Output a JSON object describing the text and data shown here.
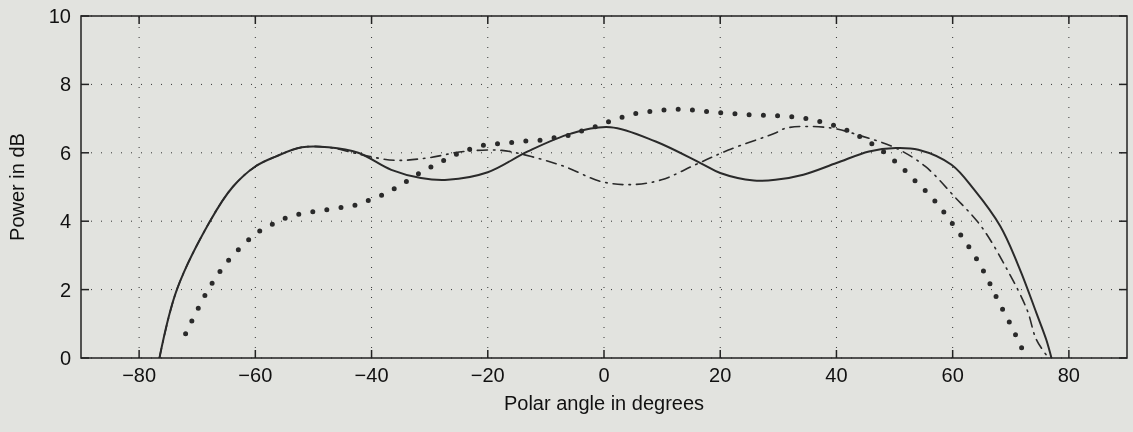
{
  "chart_data": {
    "type": "line",
    "xlabel": "Polar angle in degrees",
    "ylabel": "Power in dB",
    "xlim": [
      -90,
      90
    ],
    "ylim": [
      0,
      10
    ],
    "xticks": [
      -80,
      -60,
      -40,
      -20,
      0,
      20,
      40,
      60,
      80
    ],
    "yticks": [
      0,
      2,
      4,
      6,
      8,
      10
    ],
    "grid": true,
    "series": [
      {
        "color": "#2a2a2a",
        "line_style": "solid",
        "x": [
          -76.5,
          -73.5,
          -67.8,
          -63.9,
          -60,
          -56.5,
          -52,
          -47.4,
          -42.3,
          -36.6,
          -31.5,
          -26.9,
          -20,
          -13.1,
          -5.7,
          1.1,
          8.9,
          16.6,
          20,
          25.8,
          29.5,
          34.3,
          40,
          45.6,
          50.2,
          54.1,
          59.8,
          63.7,
          68.2,
          71.6,
          74.4,
          76.1,
          77
        ],
        "values": [
          0,
          2,
          4,
          5,
          5.6,
          5.89,
          6.16,
          6.16,
          6.0,
          5.5,
          5.26,
          5.21,
          5.43,
          6.04,
          6.56,
          6.75,
          6.33,
          5.7,
          5.41,
          5.19,
          5.21,
          5.36,
          5.7,
          6.04,
          6.14,
          6.09,
          5.65,
          4.92,
          3.85,
          2.58,
          1.32,
          0.54,
          0
        ]
      },
      {
        "color": "#2a2a2a",
        "line_style": "dashdot",
        "x": [
          -76.5,
          -73.5,
          -67.8,
          -63.9,
          -60,
          -56.5,
          -52,
          -47.4,
          -41.6,
          -36,
          -30.4,
          -24.1,
          -17.6,
          -12.5,
          -6.8,
          -0.5,
          4.7,
          9.9,
          15.7,
          21.4,
          29.5,
          31.5,
          38.9,
          44.5,
          50.2,
          55.3,
          60.3,
          64.9,
          69.4,
          72.8,
          74.4,
          76.5
        ],
        "values": [
          0,
          2,
          4,
          5,
          5.6,
          5.89,
          6.16,
          6.16,
          5.94,
          5.78,
          5.85,
          6.04,
          6.07,
          5.89,
          5.6,
          5.16,
          5.07,
          5.21,
          5.65,
          6.08,
          6.58,
          6.73,
          6.73,
          6.48,
          6.14,
          5.6,
          4.72,
          3.85,
          2.58,
          1.41,
          0.54,
          0
        ]
      },
      {
        "color": "#2a2a2a",
        "line_style": "dotted",
        "x": [
          -72,
          -69.9,
          -67.9,
          -66,
          -64,
          -61.8,
          -59.9,
          -57.8,
          -55.8,
          -53.8,
          -51.9,
          -49.9,
          -48,
          -45.8,
          -43.9,
          -42,
          -40.2,
          -38.1,
          -36.1,
          -34.3,
          -32.3,
          -30.3,
          -28.1,
          -26.1,
          -24.2,
          -22.2,
          -20,
          -18,
          -16,
          -14,
          -12,
          -10,
          -7.9,
          -5.9,
          -4,
          -2,
          0,
          2,
          4,
          6,
          8,
          10,
          12,
          14,
          16.1,
          18,
          20,
          22.1,
          24.1,
          26.2,
          28.3,
          30.2,
          32.1,
          34.1,
          36,
          38.1,
          40.1,
          42.1,
          44.1,
          46.2,
          48.1,
          50.1,
          52,
          53.9,
          56,
          58,
          59.9,
          62,
          64,
          65.9,
          67.8,
          70,
          72
        ],
        "values": [
          0.71,
          1.43,
          2.06,
          2.55,
          2.98,
          3.35,
          3.64,
          3.84,
          4.02,
          4.15,
          4.22,
          4.28,
          4.33,
          4.39,
          4.42,
          4.51,
          4.63,
          4.77,
          4.95,
          5.13,
          5.35,
          5.54,
          5.73,
          5.91,
          6.03,
          6.16,
          6.24,
          6.27,
          6.3,
          6.34,
          6.35,
          6.39,
          6.46,
          6.52,
          6.63,
          6.73,
          6.86,
          6.98,
          7.08,
          7.17,
          7.21,
          7.25,
          7.27,
          7.27,
          7.23,
          7.2,
          7.17,
          7.15,
          7.12,
          7.1,
          7.1,
          7.08,
          7.06,
          7.02,
          6.96,
          6.87,
          6.77,
          6.64,
          6.47,
          6.25,
          6.03,
          5.75,
          5.45,
          5.12,
          4.77,
          4.37,
          3.94,
          3.45,
          2.93,
          2.35,
          1.68,
          0.97,
          0.25
        ]
      }
    ]
  }
}
